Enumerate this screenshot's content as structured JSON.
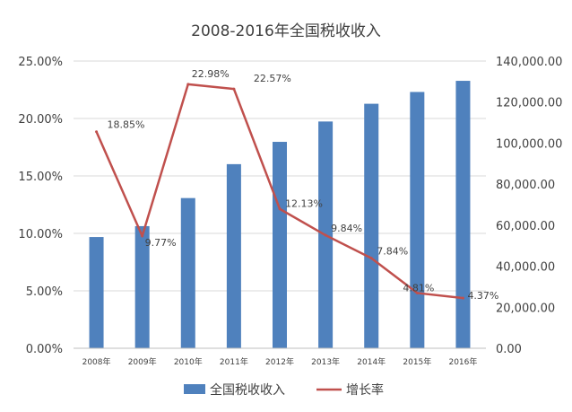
{
  "chart_data": {
    "type": "bar+line",
    "title": "2008-2016年全国税收收入",
    "categories": [
      "2008年",
      "2009年",
      "2010年",
      "2011年",
      "2012年",
      "2013年",
      "2014年",
      "2015年",
      "2016年"
    ],
    "series": [
      {
        "name": "全国税收收入",
        "type": "bar",
        "axis": "right",
        "color": "#4f81bd",
        "values": [
          54224,
          59522,
          73211,
          89738,
          100614,
          110531,
          119175,
          124922,
          130354
        ]
      },
      {
        "name": "增长率",
        "type": "line",
        "axis": "left",
        "color": "#c0504d",
        "values": [
          18.85,
          9.77,
          22.98,
          22.57,
          12.13,
          9.84,
          7.84,
          4.81,
          4.37
        ],
        "labels": [
          "18.85%",
          "9.77%",
          "22.98%",
          "22.57%",
          "12.13%",
          "9.84%",
          "7.84%",
          "4.81%",
          "4.37%"
        ]
      }
    ],
    "y_left": {
      "range": [
        0,
        25
      ],
      "ticks": [
        0,
        5,
        10,
        15,
        20,
        25
      ],
      "tick_labels": [
        "0.00%",
        "5.00%",
        "10.00%",
        "15.00%",
        "20.00%",
        "25.00%"
      ]
    },
    "y_right": {
      "range": [
        0,
        140000
      ],
      "ticks": [
        0,
        20000,
        40000,
        60000,
        80000,
        100000,
        120000,
        140000
      ],
      "tick_labels": [
        "0.00",
        "20,000.00",
        "40,000.00",
        "60,000.00",
        "80,000.00",
        "100,000.00",
        "120,000.00",
        "140,000.00"
      ]
    },
    "grid": true,
    "legend": {
      "position": "bottom",
      "items": [
        "全国税收收入",
        "增长率"
      ]
    }
  }
}
